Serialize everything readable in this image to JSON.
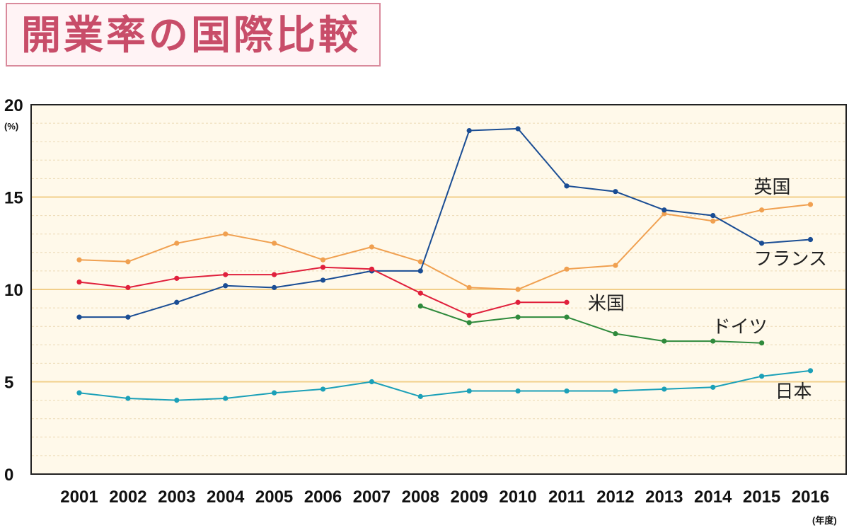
{
  "page": {
    "title": "開業率の国際比較"
  },
  "chart_data": {
    "type": "line",
    "title": "開業率の国際比較",
    "x_unit": "(年度)",
    "y_unit": "(%)",
    "ylim": [
      0,
      20
    ],
    "yticks": [
      0,
      5,
      10,
      15,
      20
    ],
    "grid": true,
    "categories": [
      "2001",
      "2002",
      "2003",
      "2004",
      "2005",
      "2006",
      "2007",
      "2008",
      "2009",
      "2010",
      "2011",
      "2012",
      "2013",
      "2014",
      "2015",
      "2016"
    ],
    "series": [
      {
        "name": "英国",
        "color": "#f0a050",
        "values": [
          11.6,
          11.5,
          12.5,
          13.0,
          12.5,
          11.6,
          12.3,
          11.5,
          10.1,
          10.0,
          11.1,
          11.3,
          14.1,
          13.7,
          14.3,
          14.6
        ]
      },
      {
        "name": "フランス",
        "color": "#1a4d94",
        "values": [
          8.5,
          8.5,
          9.3,
          10.2,
          10.1,
          10.5,
          11.0,
          11.0,
          18.6,
          18.7,
          15.6,
          15.3,
          14.3,
          14.0,
          12.5,
          12.7
        ]
      },
      {
        "name": "米国",
        "color": "#e0203c",
        "values": [
          10.4,
          10.1,
          10.6,
          10.8,
          10.8,
          11.2,
          11.1,
          9.8,
          8.6,
          9.3,
          9.3,
          null,
          null,
          null,
          null,
          null
        ]
      },
      {
        "name": "ドイツ",
        "color": "#2f8a3c",
        "values": [
          null,
          null,
          null,
          null,
          null,
          null,
          null,
          9.1,
          8.2,
          8.5,
          8.5,
          7.6,
          7.2,
          7.2,
          7.1,
          null
        ]
      },
      {
        "name": "日本",
        "color": "#1ba0b8",
        "values": [
          4.4,
          4.1,
          4.0,
          4.1,
          4.4,
          4.6,
          5.0,
          4.2,
          4.5,
          4.5,
          4.5,
          4.5,
          4.6,
          4.7,
          5.3,
          5.6
        ]
      }
    ]
  }
}
